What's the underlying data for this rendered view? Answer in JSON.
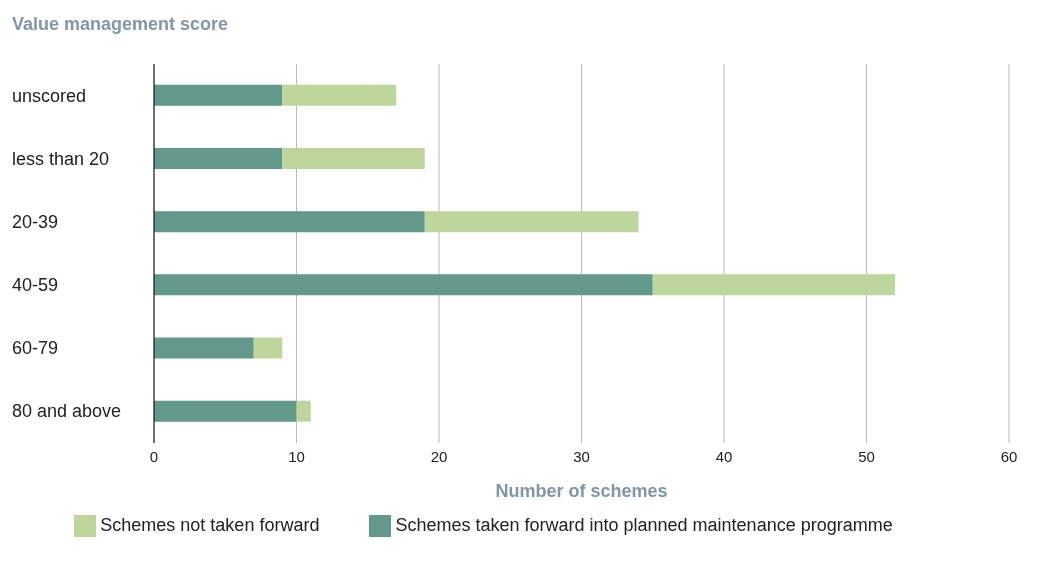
{
  "chart_data": {
    "type": "bar",
    "orientation": "horizontal",
    "stacked": true,
    "ylabel": "Value management score",
    "xlabel": "Number of schemes",
    "categories": [
      "unscored",
      "less than 20",
      "20-39",
      "40-59",
      "60-79",
      "80 and above"
    ],
    "series": [
      {
        "name": "Schemes taken forward into planned maintenance programme",
        "color": "#62998a",
        "values": [
          9,
          9,
          19,
          35,
          7,
          10
        ]
      },
      {
        "name": "Schemes not taken forward",
        "color": "#bdd69c",
        "values": [
          8,
          10,
          15,
          17,
          2,
          1
        ]
      }
    ],
    "xlim": [
      0,
      60
    ],
    "xticks": [
      0,
      10,
      20,
      30,
      40,
      50,
      60
    ],
    "grid": "x",
    "legend": "bottom"
  }
}
